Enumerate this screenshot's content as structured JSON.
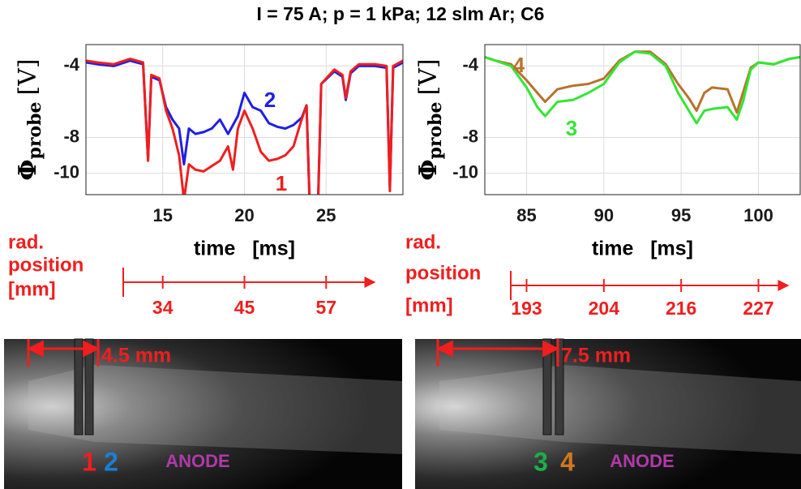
{
  "title": "I = 75 A;  p = 1 kPa;  12 slm Ar; C6",
  "chart_data": [
    {
      "type": "line",
      "ylabel": "Φ",
      "ylabel_sub": "probe",
      "ylabel_unit": "[V]",
      "xlabel": "time   [ms]",
      "x": [
        10.3,
        11,
        12,
        13,
        13.8,
        14.1,
        14.3,
        14.8,
        15.2,
        15.6,
        16,
        16.3,
        16.6,
        17,
        17.5,
        18,
        18.5,
        19,
        19.3,
        19.6,
        20,
        20.5,
        21,
        21.5,
        22,
        22.5,
        23,
        23.5,
        23.8,
        24,
        24.3,
        24.5,
        24.7,
        25.5,
        26,
        26.2,
        26.5,
        27,
        28,
        28.7,
        28.9,
        29.1,
        29.7
      ],
      "series": [
        {
          "name": "2",
          "color": "#1f1fe6",
          "values": [
            -3.8,
            -3.9,
            -4.0,
            -3.7,
            -3.9,
            -9.2,
            -4.6,
            -4.8,
            -6.3,
            -7.0,
            -7.5,
            -9.5,
            -7.5,
            -7.8,
            -7.7,
            -7.5,
            -7.0,
            -7.8,
            -7.3,
            -6.8,
            -5.5,
            -6.3,
            -6.5,
            -7.2,
            -7.4,
            -7.5,
            -7.3,
            -6.9,
            -6.2,
            -11.8,
            -11.4,
            -11.8,
            -5.0,
            -4.3,
            -4.6,
            -5.9,
            -4.4,
            -4.0,
            -4.0,
            -4.1,
            -10.8,
            -4.1,
            -3.8
          ]
        },
        {
          "name": "1",
          "color": "#f01e1e",
          "values": [
            -3.7,
            -3.8,
            -3.9,
            -3.6,
            -3.8,
            -9.3,
            -4.5,
            -4.7,
            -6.5,
            -7.5,
            -9.0,
            -11.5,
            -9.5,
            -9.8,
            -9.9,
            -9.6,
            -9.3,
            -8.5,
            -9.8,
            -7.5,
            -6.5,
            -7.5,
            -8.8,
            -9.3,
            -9.2,
            -9.0,
            -8.5,
            -7.0,
            -6.2,
            -12.0,
            -11.5,
            -12.0,
            -5.0,
            -4.2,
            -4.5,
            -5.8,
            -4.3,
            -3.9,
            -3.9,
            -4.0,
            -11.0,
            -4.0,
            -3.7
          ]
        }
      ],
      "xlim": [
        10.3,
        29.7
      ],
      "ylim": [
        -11.2,
        -2.8
      ],
      "xticks": [
        15,
        20,
        25
      ],
      "yticks": [
        -4,
        -8,
        -10
      ],
      "grid": true
    },
    {
      "type": "line",
      "ylabel": "Φ",
      "ylabel_sub": "probe",
      "ylabel_unit": "[V]",
      "xlabel": "time   [ms]",
      "x": [
        82.3,
        83,
        84,
        85,
        85.7,
        86.2,
        87,
        88,
        89,
        90,
        91,
        92,
        93,
        94,
        94.8,
        95.5,
        96,
        96.5,
        97,
        98,
        98.6,
        99,
        99.5,
        100,
        101,
        102,
        102.7
      ],
      "series": [
        {
          "name": "4",
          "color": "#b8722c",
          "values": [
            -3.5,
            -3.7,
            -3.9,
            -4.8,
            -5.5,
            -6.0,
            -5.3,
            -5.1,
            -5.0,
            -4.7,
            -3.7,
            -3.2,
            -3.2,
            -3.9,
            -5.0,
            -5.8,
            -6.5,
            -5.5,
            -5.2,
            -5.3,
            -6.6,
            -5.5,
            -4.1,
            -3.8,
            -3.9,
            -3.6,
            -3.5
          ]
        },
        {
          "name": "3",
          "color": "#33e633",
          "values": [
            -3.5,
            -3.7,
            -4.0,
            -5.2,
            -6.3,
            -6.8,
            -6.0,
            -5.9,
            -5.5,
            -5.0,
            -3.8,
            -3.2,
            -3.3,
            -4.0,
            -5.5,
            -6.5,
            -7.2,
            -6.5,
            -6.4,
            -6.3,
            -7.0,
            -6.0,
            -4.2,
            -3.8,
            -3.9,
            -3.6,
            -3.5
          ]
        }
      ],
      "xlim": [
        82.3,
        102.7
      ],
      "ylim": [
        -11.2,
        -2.8
      ],
      "xticks": [
        85,
        90,
        95,
        100
      ],
      "yticks": [
        -4,
        -8,
        -10
      ],
      "grid": true
    }
  ],
  "rad_axes": [
    {
      "label": [
        "rad.",
        "position",
        "[mm]"
      ],
      "times": [
        15,
        20,
        25
      ],
      "positions": [
        34,
        45,
        57
      ]
    },
    {
      "label": [
        "rad.",
        "position",
        "[mm]"
      ],
      "times": [
        85,
        90,
        95,
        100
      ],
      "positions": [
        193,
        204,
        216,
        227
      ]
    }
  ],
  "photos": [
    {
      "dimension": "4.5 mm",
      "probes": [
        "1",
        "2"
      ],
      "anode": "ANODE"
    },
    {
      "dimension": "7.5 mm",
      "probes": [
        "3",
        "4"
      ],
      "anode": "ANODE"
    }
  ]
}
